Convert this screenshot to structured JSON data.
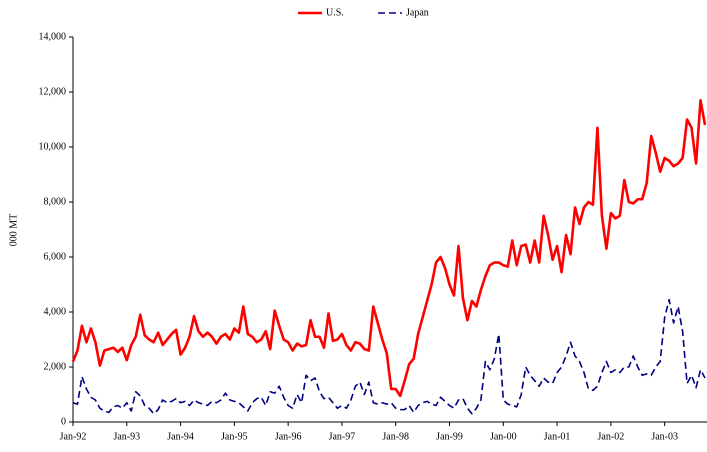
{
  "chart_data": {
    "type": "line",
    "y_label": "000 MT",
    "categories": [
      "Jan-92",
      null,
      null,
      null,
      null,
      null,
      null,
      null,
      null,
      null,
      null,
      null,
      "Jan-93",
      null,
      null,
      null,
      null,
      null,
      null,
      null,
      null,
      null,
      null,
      null,
      "Jan-94",
      null,
      null,
      null,
      null,
      null,
      null,
      null,
      null,
      null,
      null,
      null,
      "Jan-95",
      null,
      null,
      null,
      null,
      null,
      null,
      null,
      null,
      null,
      null,
      null,
      "Jan-96",
      null,
      null,
      null,
      null,
      null,
      null,
      null,
      null,
      null,
      null,
      null,
      "Jan-97",
      null,
      null,
      null,
      null,
      null,
      null,
      null,
      null,
      null,
      null,
      null,
      "Jan-98",
      null,
      null,
      null,
      null,
      null,
      null,
      null,
      null,
      null,
      null,
      null,
      "Jan-99",
      null,
      null,
      null,
      null,
      null,
      null,
      null,
      null,
      null,
      null,
      null,
      "Jan-00",
      null,
      null,
      null,
      null,
      null,
      null,
      null,
      null,
      null,
      null,
      null,
      "Jan-01",
      null,
      null,
      null,
      null,
      null,
      null,
      null,
      null,
      null,
      null,
      null,
      "Jan-02",
      null,
      null,
      null,
      null,
      null,
      null,
      null,
      null,
      null,
      null,
      null,
      "Jan-03",
      null,
      null,
      null,
      null,
      null,
      null,
      null,
      null,
      null
    ],
    "series": [
      {
        "name": "U.S.",
        "color": "#ff0000",
        "dash": false,
        "values": [
          2200,
          2600,
          3500,
          2900,
          3400,
          2900,
          2050,
          2600,
          2650,
          2700,
          2550,
          2700,
          2250,
          2800,
          3100,
          3900,
          3150,
          3000,
          2900,
          3250,
          2800,
          3000,
          3200,
          3350,
          2450,
          2700,
          3100,
          3850,
          3300,
          3100,
          3250,
          3100,
          2850,
          3100,
          3200,
          3000,
          3400,
          3250,
          4200,
          3200,
          3100,
          2900,
          3000,
          3300,
          2650,
          4050,
          3500,
          3000,
          2900,
          2600,
          2850,
          2750,
          2800,
          3700,
          3100,
          3100,
          2700,
          3950,
          2950,
          3000,
          3200,
          2800,
          2600,
          2900,
          2850,
          2650,
          2600,
          4200,
          3600,
          3000,
          2500,
          1200,
          1200,
          950,
          1500,
          2100,
          2300,
          3200,
          3800,
          4400,
          5000,
          5800,
          6000,
          5600,
          5000,
          4600,
          6400,
          4500,
          3700,
          4400,
          4200,
          4800,
          5300,
          5700,
          5800,
          5800,
          5700,
          5650,
          6600,
          5700,
          6400,
          6450,
          5800,
          6600,
          5800,
          7500,
          6800,
          5900,
          6400,
          5450,
          6800,
          6100,
          7800,
          7200,
          7800,
          8000,
          7900,
          10700,
          7500,
          6300,
          7600,
          7400,
          7500,
          8800,
          8000,
          7950,
          8100,
          8100,
          8700,
          10400,
          9800,
          9100,
          9600,
          9500,
          9300,
          9400,
          9600,
          11000,
          10700,
          9400,
          11700,
          10800
        ]
      },
      {
        "name": "Japan",
        "color": "#000080",
        "dash": true,
        "values": [
          700,
          650,
          1650,
          1200,
          900,
          800,
          500,
          400,
          350,
          550,
          600,
          500,
          700,
          400,
          1100,
          950,
          600,
          500,
          300,
          450,
          800,
          700,
          750,
          850,
          700,
          750,
          600,
          800,
          700,
          650,
          600,
          750,
          700,
          800,
          1050,
          800,
          750,
          700,
          550,
          400,
          700,
          850,
          900,
          600,
          1100,
          1050,
          1300,
          900,
          600,
          500,
          1000,
          700,
          1700,
          1500,
          1600,
          1100,
          850,
          900,
          700,
          500,
          600,
          500,
          800,
          1300,
          1450,
          1000,
          1450,
          700,
          650,
          700,
          650,
          700,
          500,
          450,
          450,
          600,
          350,
          600,
          700,
          750,
          650,
          600,
          900,
          750,
          600,
          500,
          800,
          850,
          500,
          300,
          500,
          800,
          2200,
          1900,
          2300,
          3200,
          800,
          650,
          600,
          550,
          1000,
          2000,
          1700,
          1500,
          1300,
          1600,
          1450,
          1400,
          1800,
          2000,
          2400,
          2900,
          2400,
          2200,
          1800,
          1200,
          1150,
          1300,
          1800,
          2200,
          1800,
          1900,
          1800,
          2000,
          2000,
          2400,
          2000,
          1700,
          1750,
          1700,
          2000,
          2200,
          3800,
          4450,
          3600,
          4200,
          3300,
          1400,
          1700,
          1250,
          1900,
          1600
        ]
      }
    ],
    "ylim": [
      0,
      14000
    ],
    "yticks": [
      0,
      {
        "value": 2000,
        "label": "2,000"
      },
      {
        "value": 4000,
        "label": "4,000"
      },
      {
        "value": 6000,
        "label": "6,000"
      },
      {
        "value": 8000,
        "label": "8,000"
      },
      {
        "value": 10000,
        "label": "10,000"
      },
      {
        "value": 12000,
        "label": "12,000"
      },
      {
        "value": 14000,
        "label": "14,000"
      }
    ],
    "grid": false,
    "legend": "top"
  }
}
